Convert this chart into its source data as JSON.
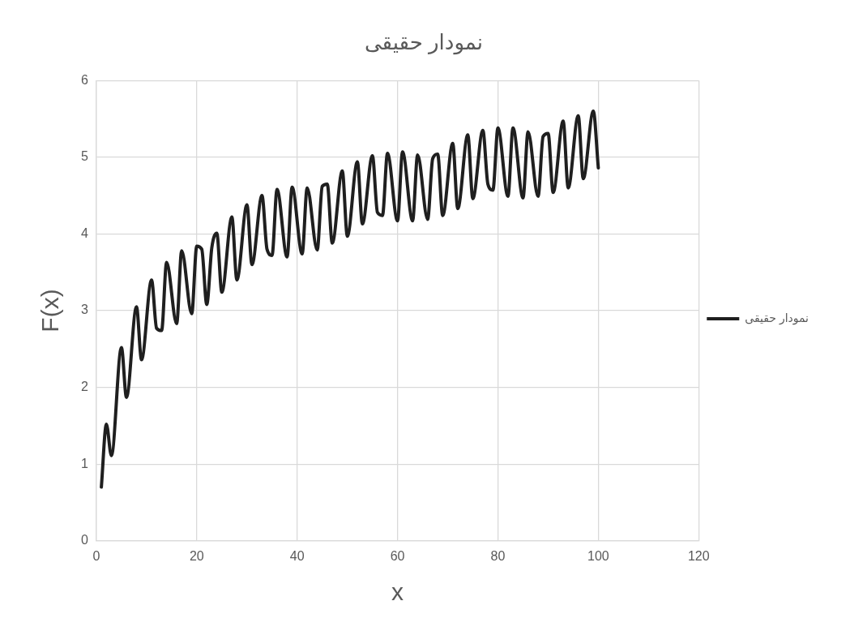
{
  "chart_data": {
    "type": "line",
    "title": "نمودار حقیقی",
    "xlabel": "x",
    "ylabel": "F(x)",
    "xlim": [
      0,
      120
    ],
    "xticks": [
      0,
      20,
      40,
      60,
      80,
      100,
      120
    ],
    "ylim": [
      0,
      6
    ],
    "yticks": [
      0,
      1,
      2,
      3,
      4,
      5,
      6
    ],
    "grid": true,
    "legend": "right",
    "marker": "none",
    "line_style": "solid",
    "series": [
      {
        "name": "نمودار حقیقی",
        "color": "#1f1f1f",
        "x": [
          1,
          2,
          3,
          5,
          6,
          8,
          9,
          11,
          12,
          13,
          14,
          16,
          17,
          19,
          20,
          21,
          22,
          23,
          24,
          25,
          27,
          28,
          30,
          31,
          33,
          34,
          35,
          36,
          38,
          39,
          41,
          42,
          44,
          45,
          46,
          47,
          49,
          50,
          52,
          53,
          55,
          56,
          57,
          58,
          60,
          61,
          63,
          64,
          66,
          67,
          68,
          69,
          71,
          72,
          74,
          75,
          77,
          78,
          79,
          80,
          82,
          83,
          85,
          86,
          88,
          89,
          90,
          91,
          93,
          94,
          96,
          97,
          99,
          100
        ],
        "values": [
          0.7,
          1.52,
          1.11,
          2.52,
          1.87,
          3.05,
          2.36,
          3.4,
          2.77,
          2.74,
          3.63,
          2.83,
          3.78,
          2.96,
          3.84,
          3.8,
          3.08,
          3.82,
          4.01,
          3.24,
          4.22,
          3.4,
          4.38,
          3.6,
          4.5,
          3.8,
          3.72,
          4.58,
          3.7,
          4.61,
          3.74,
          4.6,
          3.79,
          4.62,
          4.65,
          3.88,
          4.82,
          3.97,
          4.94,
          4.13,
          5.02,
          4.28,
          4.24,
          5.05,
          4.17,
          5.07,
          4.17,
          5.03,
          4.19,
          4.98,
          5.04,
          4.24,
          5.18,
          4.33,
          5.29,
          4.46,
          5.35,
          4.65,
          4.57,
          5.38,
          4.49,
          5.38,
          4.47,
          5.33,
          4.49,
          5.27,
          5.31,
          4.54,
          5.47,
          4.6,
          5.54,
          4.72,
          5.6,
          4.86
        ]
      }
    ]
  }
}
